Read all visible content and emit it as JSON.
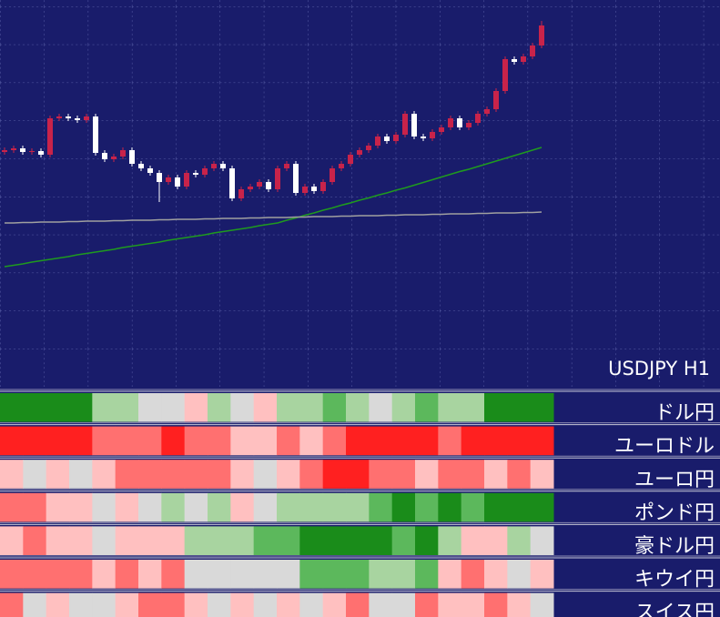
{
  "chart_data": {
    "type": "candlestick",
    "title": "USDJPY H1",
    "open": [
      145.16,
      145.2,
      145.24,
      145.16,
      145.18,
      145.1,
      145.9,
      145.94,
      145.9,
      145.86,
      145.94,
      145.14,
      145.0,
      145.06,
      145.2,
      144.9,
      144.8,
      144.7,
      144.5,
      144.6,
      144.4,
      144.7,
      144.66,
      144.8,
      144.9,
      144.8,
      144.14,
      144.34,
      144.4,
      144.5,
      144.34,
      144.8,
      144.9,
      144.26,
      144.4,
      144.3,
      144.5,
      144.8,
      144.9,
      145.1,
      145.2,
      145.3,
      145.5,
      145.4,
      145.54,
      146.0,
      145.5,
      145.46,
      145.6,
      145.7,
      145.9,
      145.7,
      145.8,
      146.0,
      146.1,
      146.5,
      147.2,
      147.14,
      147.26,
      147.5
    ],
    "high": [
      145.26,
      145.3,
      145.3,
      145.24,
      145.24,
      145.96,
      146.0,
      146.0,
      145.96,
      146.0,
      146.0,
      145.2,
      145.12,
      145.26,
      145.26,
      144.96,
      144.86,
      144.76,
      144.66,
      144.66,
      144.76,
      144.76,
      144.86,
      144.96,
      144.96,
      144.86,
      144.4,
      144.46,
      144.56,
      144.56,
      144.86,
      144.96,
      144.96,
      144.46,
      144.46,
      144.56,
      144.86,
      144.96,
      145.16,
      145.26,
      145.36,
      145.56,
      145.56,
      145.6,
      146.06,
      146.06,
      145.56,
      145.66,
      145.76,
      145.96,
      145.96,
      145.86,
      146.06,
      146.16,
      146.56,
      147.26,
      147.26,
      147.32,
      147.56,
      148.04
    ],
    "low": [
      145.1,
      145.14,
      145.1,
      145.1,
      145.04,
      145.04,
      145.84,
      145.84,
      145.8,
      145.8,
      145.08,
      144.94,
      144.94,
      145.0,
      144.84,
      144.74,
      144.64,
      144.06,
      144.44,
      144.34,
      144.34,
      144.6,
      144.6,
      144.74,
      144.74,
      144.08,
      144.08,
      144.28,
      144.34,
      144.28,
      144.28,
      144.74,
      144.2,
      144.2,
      144.24,
      144.24,
      144.44,
      144.74,
      144.84,
      145.04,
      145.14,
      145.24,
      145.34,
      145.34,
      145.48,
      145.44,
      145.4,
      145.4,
      145.54,
      145.64,
      145.64,
      145.64,
      145.74,
      145.94,
      146.04,
      146.44,
      147.08,
      147.08,
      147.2,
      147.44
    ],
    "close": [
      145.2,
      145.24,
      145.16,
      145.18,
      145.1,
      145.9,
      145.94,
      145.9,
      145.86,
      145.94,
      145.14,
      145.0,
      145.06,
      145.2,
      144.9,
      144.8,
      144.7,
      144.5,
      144.6,
      144.4,
      144.7,
      144.66,
      144.8,
      144.9,
      144.8,
      144.14,
      144.34,
      144.4,
      144.5,
      144.34,
      144.8,
      144.9,
      144.26,
      144.4,
      144.3,
      144.5,
      144.8,
      144.9,
      145.1,
      145.2,
      145.3,
      145.5,
      145.4,
      145.54,
      146.0,
      145.5,
      145.46,
      145.6,
      145.7,
      145.9,
      145.7,
      145.8,
      146.0,
      146.1,
      146.5,
      147.2,
      147.14,
      147.26,
      147.5,
      147.94
    ],
    "up_color": "#c8234a",
    "down_color": "#ffffff",
    "series": [
      {
        "color": "#1f9a1f",
        "values": [
          142.64,
          142.67,
          142.7,
          142.74,
          142.77,
          142.8,
          142.83,
          142.86,
          142.9,
          142.93,
          142.96,
          142.99,
          143.02,
          143.06,
          143.09,
          143.12,
          143.15,
          143.18,
          143.22,
          143.25,
          143.28,
          143.31,
          143.34,
          143.38,
          143.41,
          143.44,
          143.47,
          143.5,
          143.54,
          143.57,
          143.6,
          143.66,
          143.71,
          143.77,
          143.82,
          143.88,
          143.93,
          143.99,
          144.04,
          144.1,
          144.15,
          144.21,
          144.26,
          144.32,
          144.37,
          144.43,
          144.49,
          144.55,
          144.61,
          144.67,
          144.73,
          144.78,
          144.84,
          144.9,
          144.96,
          145.02,
          145.08,
          145.14,
          145.2,
          145.26
        ]
      },
      {
        "color": "#a0a0a0",
        "values": [
          143.6,
          143.6,
          143.61,
          143.61,
          143.62,
          143.62,
          143.62,
          143.63,
          143.63,
          143.64,
          143.64,
          143.64,
          143.65,
          143.65,
          143.66,
          143.66,
          143.66,
          143.67,
          143.67,
          143.68,
          143.68,
          143.68,
          143.69,
          143.69,
          143.7,
          143.7,
          143.7,
          143.71,
          143.71,
          143.72,
          143.72,
          143.72,
          143.73,
          143.73,
          143.74,
          143.74,
          143.74,
          143.75,
          143.75,
          143.76,
          143.76,
          143.76,
          143.77,
          143.77,
          143.78,
          143.78,
          143.78,
          143.79,
          143.79,
          143.8,
          143.8,
          143.8,
          143.81,
          143.81,
          143.82,
          143.82,
          143.82,
          143.83,
          143.83,
          143.84
        ]
      }
    ],
    "ylim": [
      140,
      148.5
    ],
    "grid": true
  },
  "strength_panel": {
    "rows": [
      {
        "label": "ドル円",
        "colors": [
          "#1a8c1a",
          "#1a8c1a",
          "#1a8c1a",
          "#1a8c1a",
          "#a8d4a0",
          "#a8d4a0",
          "#d9d9d9",
          "#d9d9d9",
          "#ffc0c0",
          "#a8d4a0",
          "#d9d9d9",
          "#ffc0c0",
          "#a8d4a0",
          "#a8d4a0",
          "#5cb85c",
          "#a8d4a0",
          "#d9d9d9",
          "#a8d4a0",
          "#5cb85c",
          "#a8d4a0",
          "#a8d4a0",
          "#1a8c1a",
          "#1a8c1a",
          "#1a8c1a"
        ]
      },
      {
        "label": "ユーロドル",
        "colors": [
          "#ff2020",
          "#ff2020",
          "#ff2020",
          "#ff2020",
          "#ff7070",
          "#ff7070",
          "#ff7070",
          "#ff2020",
          "#ff7070",
          "#ff7070",
          "#ffc0c0",
          "#ffc0c0",
          "#ff7070",
          "#ffc0c0",
          "#ff7070",
          "#ff2020",
          "#ff2020",
          "#ff2020",
          "#ff2020",
          "#ff7070",
          "#ff2020",
          "#ff2020",
          "#ff2020",
          "#ff2020"
        ]
      },
      {
        "label": "ユーロ円",
        "colors": [
          "#ffc0c0",
          "#d9d9d9",
          "#ffc0c0",
          "#d9d9d9",
          "#ffc0c0",
          "#ff7070",
          "#ff7070",
          "#ff7070",
          "#ff7070",
          "#ff7070",
          "#ffc0c0",
          "#d9d9d9",
          "#ffc0c0",
          "#ff7070",
          "#ff2020",
          "#ff2020",
          "#ff7070",
          "#ff7070",
          "#ffc0c0",
          "#ff7070",
          "#ff7070",
          "#ffc0c0",
          "#ff7070",
          "#ffc0c0"
        ]
      },
      {
        "label": "ポンド円",
        "colors": [
          "#ff7070",
          "#ff7070",
          "#ffc0c0",
          "#ffc0c0",
          "#d9d9d9",
          "#ffc0c0",
          "#d9d9d9",
          "#a8d4a0",
          "#d9d9d9",
          "#a8d4a0",
          "#ffc0c0",
          "#d9d9d9",
          "#a8d4a0",
          "#a8d4a0",
          "#a8d4a0",
          "#a8d4a0",
          "#5cb85c",
          "#1a8c1a",
          "#5cb85c",
          "#1a8c1a",
          "#5cb85c",
          "#1a8c1a",
          "#1a8c1a",
          "#1a8c1a"
        ]
      },
      {
        "label": "豪ドル円",
        "colors": [
          "#ffc0c0",
          "#ff7070",
          "#ffc0c0",
          "#ffc0c0",
          "#d9d9d9",
          "#ffc0c0",
          "#ffc0c0",
          "#ffc0c0",
          "#a8d4a0",
          "#a8d4a0",
          "#a8d4a0",
          "#5cb85c",
          "#5cb85c",
          "#1a8c1a",
          "#1a8c1a",
          "#1a8c1a",
          "#1a8c1a",
          "#5cb85c",
          "#1a8c1a",
          "#a8d4a0",
          "#ffc0c0",
          "#ffc0c0",
          "#a8d4a0",
          "#d9d9d9"
        ]
      },
      {
        "label": "キウイ円",
        "colors": [
          "#ff7070",
          "#ff7070",
          "#ff7070",
          "#ff7070",
          "#ffc0c0",
          "#ff7070",
          "#ffc0c0",
          "#ff7070",
          "#d9d9d9",
          "#d9d9d9",
          "#d9d9d9",
          "#d9d9d9",
          "#d9d9d9",
          "#5cb85c",
          "#5cb85c",
          "#5cb85c",
          "#a8d4a0",
          "#a8d4a0",
          "#5cb85c",
          "#ffc0c0",
          "#ff7070",
          "#ffc0c0",
          "#d9d9d9",
          "#ffc0c0"
        ]
      },
      {
        "label": "スイス円",
        "colors": [
          "#ff7070",
          "#d9d9d9",
          "#ffc0c0",
          "#d9d9d9",
          "#d9d9d9",
          "#ffc0c0",
          "#ff7070",
          "#ff7070",
          "#ffc0c0",
          "#d9d9d9",
          "#ffc0c0",
          "#d9d9d9",
          "#ffc0c0",
          "#d9d9d9",
          "#ffc0c0",
          "#ff7070",
          "#d9d9d9",
          "#d9d9d9",
          "#ff7070",
          "#ffc0c0",
          "#ffc0c0",
          "#ff7070",
          "#ffc0c0",
          "#d9d9d9"
        ]
      }
    ]
  }
}
